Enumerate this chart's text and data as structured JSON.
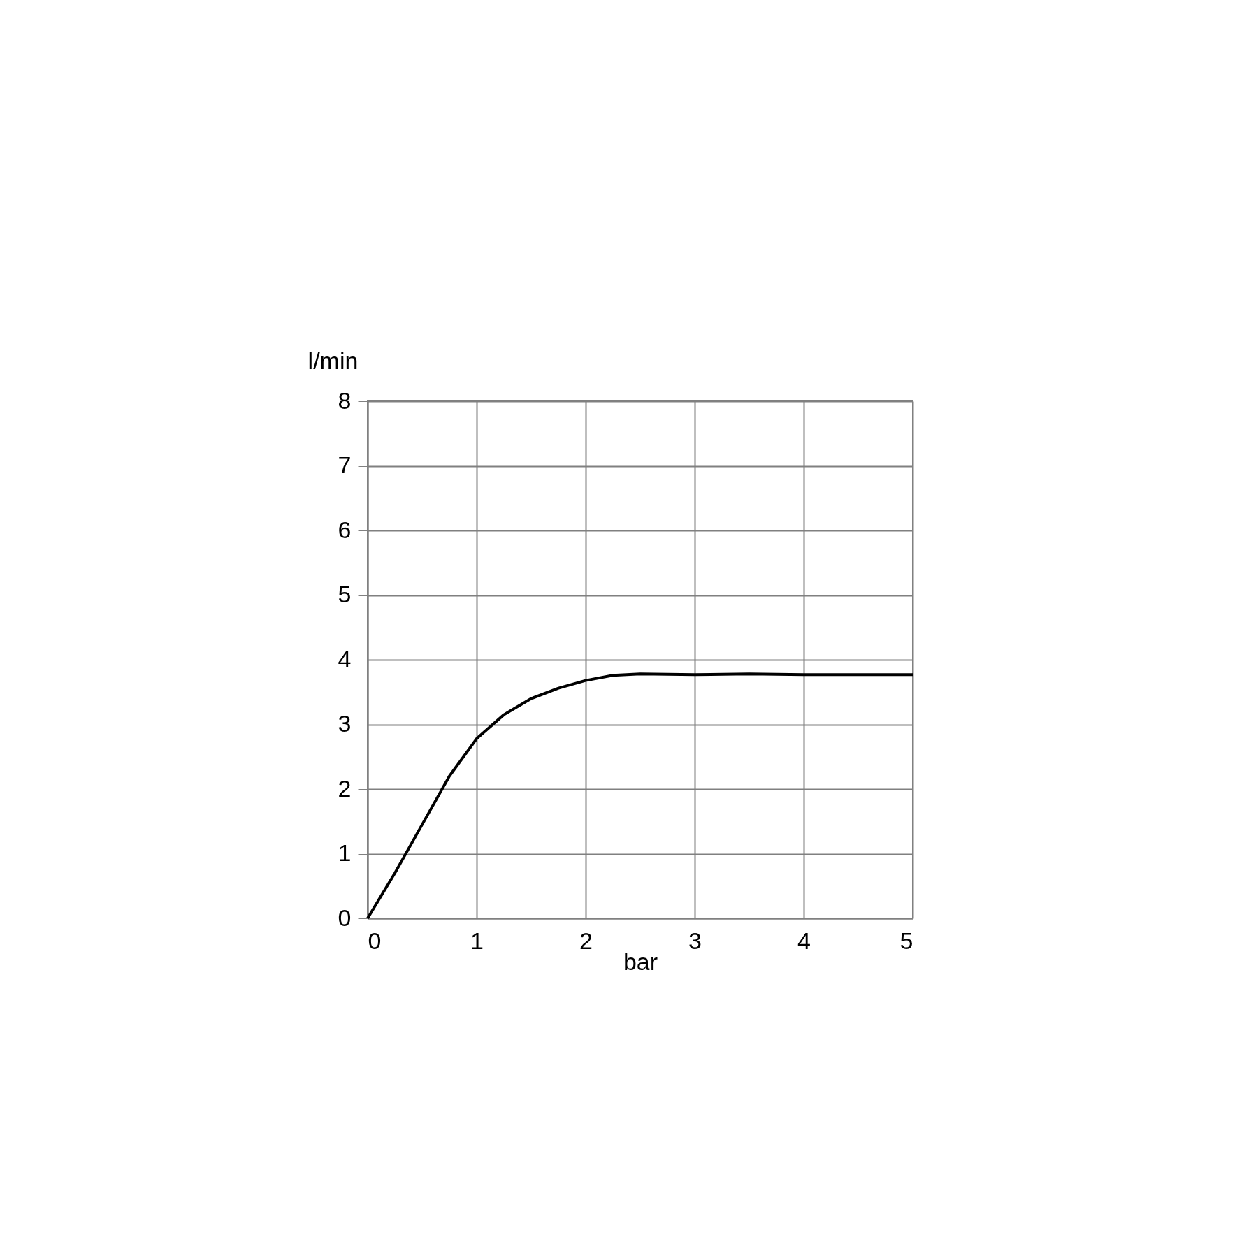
{
  "chart_data": {
    "type": "line",
    "xlabel": "bar",
    "ylabel": "l/min",
    "x": [
      0,
      0.25,
      0.5,
      0.75,
      1,
      1.25,
      1.5,
      1.75,
      2,
      2.25,
      2.5,
      3,
      3.5,
      4,
      4.5,
      5
    ],
    "series": [
      {
        "color": "#000000",
        "values": [
          0,
          0.7,
          1.45,
          2.2,
          2.78,
          3.15,
          3.4,
          3.56,
          3.68,
          3.76,
          3.78,
          3.77,
          3.78,
          3.77,
          3.77,
          3.77
        ]
      }
    ],
    "xlim": [
      0,
      5
    ],
    "xticks": [
      0,
      1,
      2,
      3,
      4,
      5
    ],
    "ylim": [
      0,
      8
    ],
    "yticks": [
      0,
      1,
      2,
      3,
      4,
      5,
      6,
      7,
      8
    ],
    "grid": true,
    "marker": "none",
    "line_style": "solid"
  }
}
